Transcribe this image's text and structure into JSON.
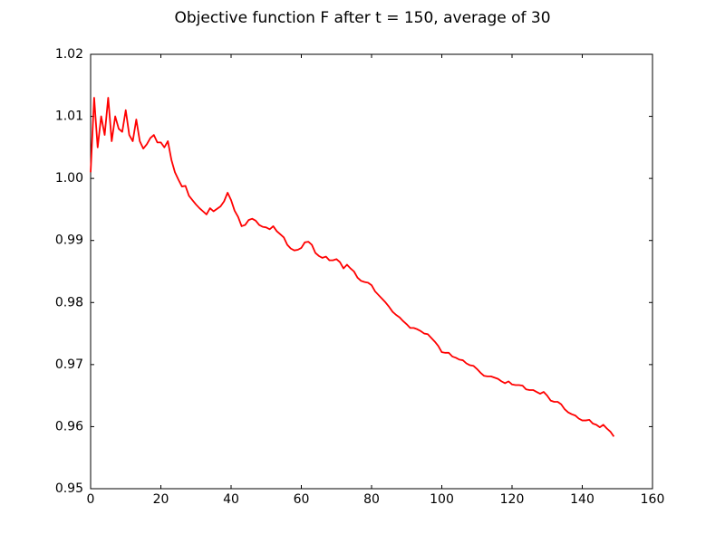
{
  "chart_data": {
    "type": "line",
    "title": "Objective function F after t = 150, average of 30",
    "x": [
      0,
      1,
      2,
      3,
      4,
      5,
      6,
      7,
      8,
      9,
      10,
      11,
      12,
      13,
      14,
      15,
      16,
      17,
      18,
      19,
      20,
      21,
      22,
      23,
      24,
      25,
      26,
      27,
      28,
      29,
      30,
      31,
      32,
      33,
      34,
      35,
      36,
      37,
      38,
      39,
      40,
      41,
      42,
      43,
      44,
      45,
      46,
      47,
      48,
      49,
      50,
      51,
      52,
      53,
      54,
      55,
      56,
      57,
      58,
      59,
      60,
      61,
      62,
      63,
      64,
      65,
      66,
      67,
      68,
      69,
      70,
      71,
      72,
      73,
      74,
      75,
      76,
      77,
      78,
      79,
      80,
      81,
      82,
      83,
      84,
      85,
      86,
      87,
      88,
      89,
      90,
      91,
      92,
      93,
      94,
      95,
      96,
      97,
      98,
      99,
      100,
      101,
      102,
      103,
      104,
      105,
      106,
      107,
      108,
      109,
      110,
      111,
      112,
      113,
      114,
      115,
      116,
      117,
      118,
      119,
      120,
      121,
      122,
      123,
      124,
      125,
      126,
      127,
      128,
      129,
      130,
      131,
      132,
      133,
      134,
      135,
      136,
      137,
      138,
      139,
      140,
      141,
      142,
      143,
      144,
      145,
      146,
      147,
      148,
      149
    ],
    "series": [
      {
        "color": "#ff0000",
        "values": [
          1.001,
          1.013,
          1.005,
          1.01,
          1.007,
          1.013,
          1.006,
          1.01,
          1.008,
          1.0075,
          1.011,
          1.007,
          1.006,
          1.0095,
          1.006,
          1.0048,
          1.0055,
          1.0065,
          1.007,
          1.0058,
          1.0058,
          1.005,
          1.006,
          1.003,
          1.001,
          0.9998,
          0.9987,
          0.9988,
          0.9972,
          0.9965,
          0.9958,
          0.9952,
          0.9947,
          0.9942,
          0.9952,
          0.9947,
          0.9951,
          0.9955,
          0.9963,
          0.9977,
          0.9965,
          0.9948,
          0.9938,
          0.9923,
          0.9925,
          0.9933,
          0.9935,
          0.9932,
          0.9925,
          0.9922,
          0.9921,
          0.9918,
          0.9923,
          0.9915,
          0.991,
          0.9905,
          0.9893,
          0.9887,
          0.9884,
          0.9885,
          0.9888,
          0.9897,
          0.9898,
          0.9893,
          0.988,
          0.9875,
          0.9872,
          0.9874,
          0.9868,
          0.9868,
          0.987,
          0.9865,
          0.9855,
          0.9861,
          0.9855,
          0.985,
          0.984,
          0.9835,
          0.9833,
          0.9832,
          0.9828,
          0.9818,
          0.9812,
          0.9806,
          0.98,
          0.9793,
          0.9785,
          0.978,
          0.9776,
          0.977,
          0.9765,
          0.9759,
          0.9759,
          0.9757,
          0.9754,
          0.975,
          0.9749,
          0.9743,
          0.9737,
          0.973,
          0.972,
          0.9719,
          0.9719,
          0.9713,
          0.9711,
          0.9708,
          0.9707,
          0.9702,
          0.9699,
          0.9698,
          0.9693,
          0.9687,
          0.9682,
          0.9681,
          0.9681,
          0.9679,
          0.9677,
          0.9673,
          0.967,
          0.9673,
          0.9668,
          0.9667,
          0.9667,
          0.9666,
          0.966,
          0.9659,
          0.9659,
          0.9656,
          0.9653,
          0.9656,
          0.965,
          0.9642,
          0.964,
          0.964,
          0.9636,
          0.9628,
          0.9623,
          0.962,
          0.9618,
          0.9613,
          0.961,
          0.961,
          0.9611,
          0.9605,
          0.9603,
          0.9599,
          0.9603,
          0.9597,
          0.9592,
          0.9584
        ]
      }
    ],
    "xlim": [
      0,
      160
    ],
    "xticks": [
      0,
      20,
      40,
      60,
      80,
      100,
      120,
      140,
      160
    ],
    "ylim": [
      0.95,
      1.02
    ],
    "yticks": [
      0.95,
      0.96,
      0.97,
      0.98,
      0.99,
      {
        "value": 1,
        "label": "1.00"
      },
      1.01,
      1.02
    ]
  }
}
